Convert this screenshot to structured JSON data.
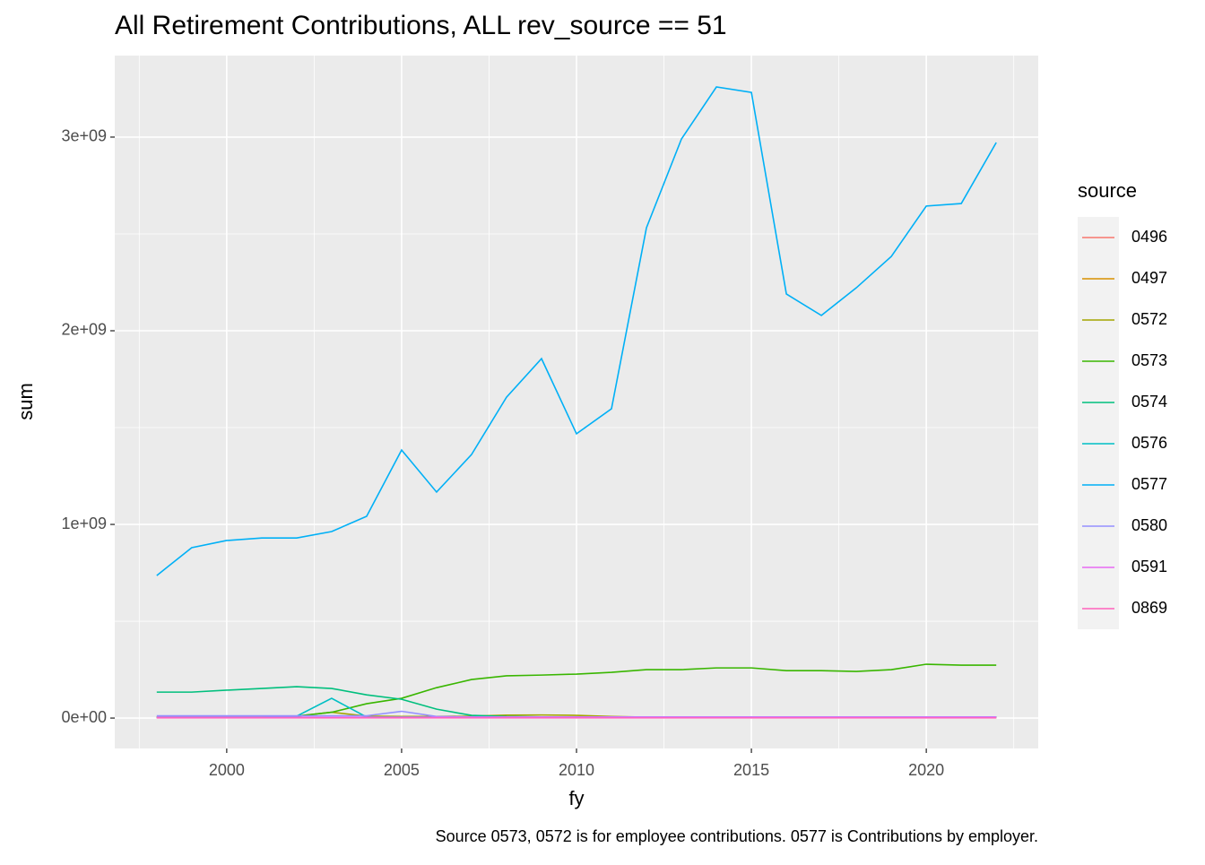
{
  "chart_data": {
    "type": "line",
    "title": "All Retirement Contributions, ALL rev_source == 51",
    "x_label": "fy",
    "y_label": "sum",
    "legend_title": "source",
    "caption": "Source 0573, 0572 is for employee contributions. 0577 is Contributions by employer.",
    "x": [
      1998,
      1999,
      2000,
      2001,
      2002,
      2003,
      2004,
      2005,
      2006,
      2007,
      2008,
      2009,
      2010,
      2011,
      2012,
      2013,
      2014,
      2015,
      2016,
      2017,
      2018,
      2019,
      2020,
      2021,
      2022
    ],
    "xlim": [
      1996.8,
      2023.2
    ],
    "xticks": [
      2000,
      2005,
      2010,
      2015,
      2020
    ],
    "ylim": [
      -157000000,
      3421000000
    ],
    "yticks": [
      {
        "value": 0,
        "label": "0e+00"
      },
      {
        "value": 1000000000,
        "label": "1e+09"
      },
      {
        "value": 2000000000,
        "label": "2e+09"
      },
      {
        "value": 3000000000,
        "label": "3e+09"
      }
    ],
    "grid": true,
    "minor_grid": true,
    "legend_position": "right",
    "series": [
      {
        "name": "0496",
        "color": "#F8766D",
        "values": [
          3000000.0,
          3000000.0,
          3000000.0,
          3000000.0,
          3000000.0,
          3000000.0,
          3000000.0,
          3000000.0,
          3000000.0,
          3000000.0,
          3000000.0,
          3000000.0,
          3000000.0,
          3000000.0,
          3000000.0,
          3000000.0,
          3000000.0,
          3000000.0,
          3000000.0,
          3000000.0,
          3000000.0,
          3000000.0,
          3000000.0,
          3000000.0,
          3000000.0
        ]
      },
      {
        "name": "0497",
        "color": "#D89000",
        "values": [
          2000000.0,
          2000000.0,
          2000000.0,
          2000000.0,
          2000000.0,
          2000000.0,
          2000000.0,
          2000000.0,
          2000000.0,
          2000000.0,
          2000000.0,
          2000000.0,
          2000000.0,
          2000000.0,
          2000000.0,
          2000000.0,
          2000000.0,
          2000000.0,
          2000000.0,
          2000000.0,
          2000000.0,
          2000000.0,
          2000000.0,
          2000000.0,
          2000000.0
        ]
      },
      {
        "name": "0572",
        "color": "#A3A500",
        "values": [
          5000000.0,
          5000000.0,
          5000000.0,
          5000000.0,
          10000000.0,
          30000000.0,
          10000000.0,
          8000000.0,
          8000000.0,
          10000000.0,
          15000000.0,
          16000000.0,
          14000000.0,
          8000000.0,
          5000000.0,
          4000000.0,
          4000000.0,
          4000000.0,
          4000000.0,
          4000000.0,
          4000000.0,
          4000000.0,
          4000000.0,
          4000000.0,
          4000000.0
        ]
      },
      {
        "name": "0573",
        "color": "#39B600",
        "values": [
          5000000.0,
          5000000.0,
          5000000.0,
          5000000.0,
          10000000.0,
          30000000.0,
          74000000.0,
          102000000.0,
          157000000.0,
          199000000.0,
          218000000.0,
          222000000.0,
          227000000.0,
          236000000.0,
          250000000.0,
          250000000.0,
          259000000.0,
          259000000.0,
          245000000.0,
          245000000.0,
          241000000.0,
          250000000.0,
          278000000.0,
          273000000.0,
          273000000.0
        ]
      },
      {
        "name": "0574",
        "color": "#00BF7D",
        "values": [
          134000000.0,
          134000000.0,
          144000000.0,
          153000000.0,
          162000000.0,
          153000000.0,
          120000000.0,
          97000000.0,
          46000000.0,
          14000000.0,
          8000000.0,
          6000000.0,
          6000000.0,
          6000000.0,
          6000000.0,
          6000000.0,
          6000000.0,
          6000000.0,
          6000000.0,
          6000000.0,
          6000000.0,
          6000000.0,
          6000000.0,
          6000000.0,
          6000000.0
        ]
      },
      {
        "name": "0576",
        "color": "#00BFC4",
        "values": [
          5000000.0,
          5000000.0,
          5000000.0,
          5000000.0,
          10000000.0,
          102000000.0,
          5000000.0,
          5000000.0,
          5000000.0,
          5000000.0,
          5000000.0,
          5000000.0,
          5000000.0,
          5000000.0,
          5000000.0,
          5000000.0,
          5000000.0,
          5000000.0,
          5000000.0,
          5000000.0,
          5000000.0,
          5000000.0,
          5000000.0,
          5000000.0,
          5000000.0
        ]
      },
      {
        "name": "0577",
        "color": "#00B0F6",
        "values": [
          736000000.0,
          880000000.0,
          917000000.0,
          930000000.0,
          930000000.0,
          963000000.0,
          1042000000.0,
          1384000000.0,
          1167000000.0,
          1361000000.0,
          1657000000.0,
          1856000000.0,
          1468000000.0,
          1597000000.0,
          2532000000.0,
          2990000000.0,
          3259000000.0,
          3231000000.0,
          2190000000.0,
          2079000000.0,
          2222000000.0,
          2384000000.0,
          2644000000.0,
          2657000000.0,
          2972000000.0
        ]
      },
      {
        "name": "0580",
        "color": "#9590FF",
        "values": [
          12000000.0,
          12000000.0,
          12000000.0,
          12000000.0,
          12000000.0,
          12000000.0,
          12000000.0,
          35000000.0,
          8000000.0,
          6000000.0,
          6000000.0,
          6000000.0,
          6000000.0,
          6000000.0,
          6000000.0,
          6000000.0,
          6000000.0,
          6000000.0,
          6000000.0,
          6000000.0,
          6000000.0,
          6000000.0,
          6000000.0,
          6000000.0,
          6000000.0
        ]
      },
      {
        "name": "0591",
        "color": "#E76BF3",
        "values": [
          4000000.0,
          4000000.0,
          4000000.0,
          4000000.0,
          4000000.0,
          4000000.0,
          4000000.0,
          4000000.0,
          4000000.0,
          4000000.0,
          4000000.0,
          4000000.0,
          4000000.0,
          4000000.0,
          4000000.0,
          4000000.0,
          4000000.0,
          4000000.0,
          4000000.0,
          4000000.0,
          4000000.0,
          4000000.0,
          4000000.0,
          4000000.0,
          4000000.0
        ]
      },
      {
        "name": "0869",
        "color": "#FF62BC",
        "values": [
          1000000.0,
          1000000.0,
          1000000.0,
          1000000.0,
          1000000.0,
          1000000.0,
          1000000.0,
          1000000.0,
          1000000.0,
          1000000.0,
          1000000.0,
          1000000.0,
          1000000.0,
          1000000.0,
          1000000.0,
          1000000.0,
          1000000.0,
          1000000.0,
          1000000.0,
          1000000.0,
          1000000.0,
          1000000.0,
          1000000.0,
          1000000.0,
          1000000.0
        ]
      }
    ]
  }
}
